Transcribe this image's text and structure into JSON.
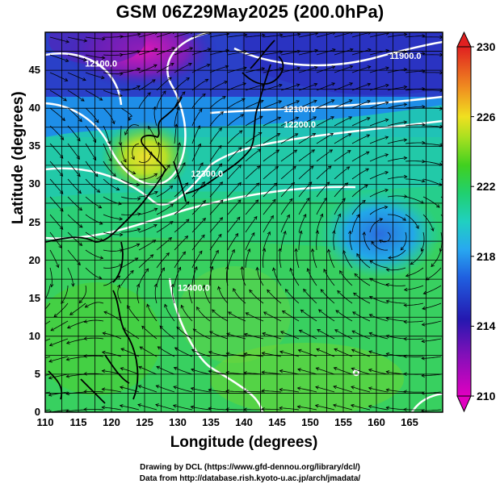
{
  "title": "GSM 06Z29May2025 (200.0hPa)",
  "chart_data": {
    "type": "heatmap",
    "title": "GSM 06Z29May2025 (200.0hPa)",
    "xlabel": "Longitude (degrees)",
    "ylabel": "Latitude  (degrees)",
    "x_ticks": [
      110,
      115,
      120,
      125,
      130,
      135,
      140,
      145,
      150,
      155,
      160,
      165
    ],
    "y_ticks": [
      0,
      5,
      10,
      15,
      20,
      25,
      30,
      35,
      40,
      45
    ],
    "xlim": [
      110,
      170
    ],
    "ylim": [
      0,
      50
    ],
    "grid": true,
    "colorbar": {
      "ticks": [
        210,
        214,
        218,
        222,
        226,
        230
      ],
      "range": [
        210,
        230
      ],
      "colors": [
        "#e000c0",
        "#3018b0",
        "#28a0f0",
        "#20d0a0",
        "#40d020",
        "#e8e020",
        "#f08020",
        "#e02020"
      ]
    },
    "contour_labels": [
      {
        "text": "12100.0",
        "lon": 116,
        "lat": 45.5
      },
      {
        "text": "11900.0",
        "lon": 162,
        "lat": 46.5
      },
      {
        "text": "12100.0",
        "lon": 146,
        "lat": 39.5
      },
      {
        "text": "12200.0",
        "lon": 146,
        "lat": 37.5
      },
      {
        "text": "12300.0",
        "lon": 132,
        "lat": 31
      },
      {
        "text": "12400.0",
        "lon": 130,
        "lat": 16
      }
    ]
  },
  "credits": {
    "line1": "Drawing by DCL (https://www.gfd-dennou.org/library/dcl/)",
    "line2": "Data from http://database.rish.kyoto-u.ac.jp/arch/jmadata/"
  }
}
